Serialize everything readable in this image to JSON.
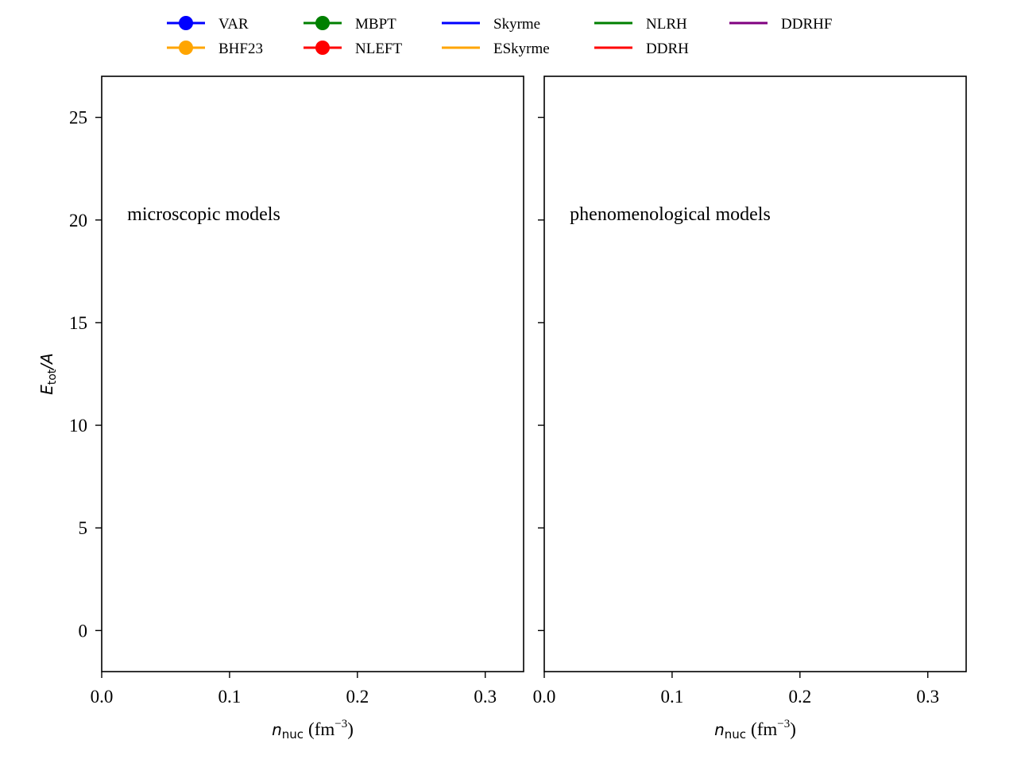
{
  "legend": {
    "placement": "top-center",
    "entries": [
      {
        "label": "VAR",
        "color": "#0000ff",
        "marker": true
      },
      {
        "label": "BHF23",
        "color": "#ffa500",
        "marker": true
      },
      {
        "label": "MBPT",
        "color": "#008000",
        "marker": true
      },
      {
        "label": "NLEFT",
        "color": "#ff0000",
        "marker": true
      },
      {
        "label": "Skyrme",
        "color": "#0000ff",
        "marker": false
      },
      {
        "label": "ESkyrme",
        "color": "#ffa500",
        "marker": false
      },
      {
        "label": "NLRH",
        "color": "#008000",
        "marker": false
      },
      {
        "label": "DDRH",
        "color": "#ff0000",
        "marker": false
      },
      {
        "label": "DDRHF",
        "color": "#800080",
        "marker": false
      }
    ]
  },
  "chart_data": [
    {
      "type": "line",
      "annotation": "microscopic models",
      "xlabel_main": "n",
      "xlabel_sub": "nuc",
      "xlabel_unit": "(fm",
      "xlabel_exp": "−3",
      "xlabel_close": ")",
      "ylabel_main": "E",
      "ylabel_sub": "tot",
      "ylabel_rest": "/A",
      "xlim": [
        0.0,
        0.33
      ],
      "ylim": [
        -2.0,
        27.0
      ],
      "xticks": [
        {
          "v": 0.0,
          "label": "0.0"
        },
        {
          "v": 0.1,
          "label": "0.1"
        },
        {
          "v": 0.2,
          "label": "0.2"
        },
        {
          "v": 0.3,
          "label": "0.3"
        }
      ],
      "yticks": [
        {
          "v": 0,
          "label": "0"
        },
        {
          "v": 5,
          "label": "5"
        },
        {
          "v": 10,
          "label": "10"
        },
        {
          "v": 15,
          "label": "15"
        },
        {
          "v": 20,
          "label": "20"
        },
        {
          "v": 25,
          "label": "25"
        }
      ],
      "series": [],
      "grid": false
    },
    {
      "type": "line",
      "annotation": "phenomenological models",
      "xlabel_main": "n",
      "xlabel_sub": "nuc",
      "xlabel_unit": "(fm",
      "xlabel_exp": "−3",
      "xlabel_close": ")",
      "xlim": [
        0.0,
        0.33
      ],
      "ylim": [
        -2.0,
        27.0
      ],
      "xticks": [
        {
          "v": 0.0,
          "label": "0.0"
        },
        {
          "v": 0.1,
          "label": "0.1"
        },
        {
          "v": 0.2,
          "label": "0.2"
        },
        {
          "v": 0.3,
          "label": "0.3"
        }
      ],
      "yticks": [
        {
          "v": 0,
          "label": ""
        },
        {
          "v": 5,
          "label": ""
        },
        {
          "v": 10,
          "label": ""
        },
        {
          "v": 15,
          "label": ""
        },
        {
          "v": 20,
          "label": ""
        },
        {
          "v": 25,
          "label": ""
        }
      ],
      "series": [],
      "grid": false
    }
  ]
}
